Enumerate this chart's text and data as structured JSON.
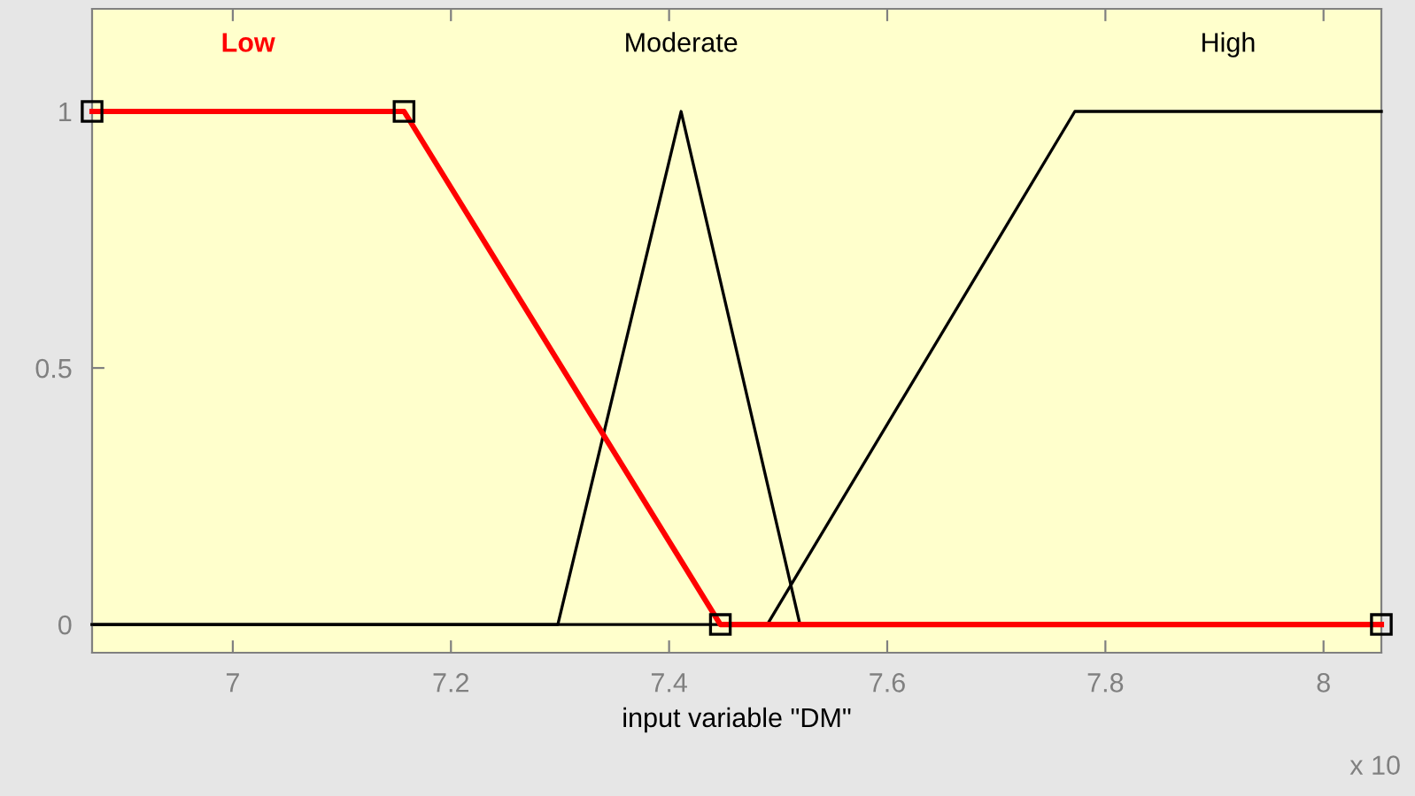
{
  "chart_data": {
    "type": "line",
    "xlabel": "input variable \"DM\"",
    "xlim": [
      6.871,
      8.053
    ],
    "ylim": [
      -0.055,
      1.2
    ],
    "xticks": [
      7,
      7.2,
      7.4,
      7.6,
      7.8,
      8
    ],
    "yticks": [
      0,
      0.5,
      1
    ],
    "grid": false,
    "legend": false,
    "line_style": "solid",
    "annotations": [
      "x 10"
    ],
    "series": [
      {
        "name": "Moderate",
        "color": "#000000",
        "x": [
          6.871,
          7.298,
          7.411,
          7.52,
          8.053
        ],
        "values": [
          0,
          0,
          1,
          0,
          0
        ],
        "marker": "none"
      },
      {
        "name": "High",
        "color": "#000000",
        "x": [
          6.871,
          7.49,
          7.772,
          8.053
        ],
        "values": [
          0,
          0,
          1,
          1
        ],
        "marker": "none"
      },
      {
        "name": "Low",
        "color": "#ff0000",
        "x": [
          6.871,
          7.157,
          7.447,
          8.053
        ],
        "values": [
          1,
          1,
          0,
          0
        ],
        "marker": "square"
      }
    ]
  }
}
